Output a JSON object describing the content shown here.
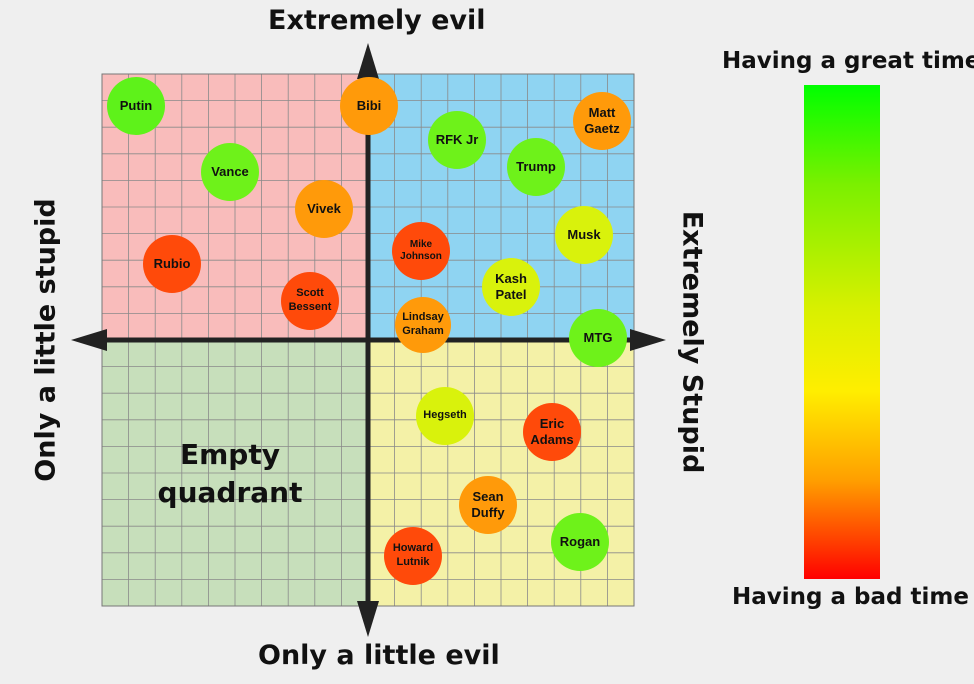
{
  "axes": {
    "top": "Extremely evil",
    "bottom": "Only a little evil",
    "left": "Only a little stupid",
    "right": "Extremely Stupid"
  },
  "quadrant_colors": {
    "top_left": "#f9bcbb",
    "top_right": "#8fd4f2",
    "bottom_left": "#c7dfbb",
    "bottom_right": "#f4f1a7"
  },
  "empty_quadrant_label": "Empty quadrant",
  "legend": {
    "top_label": "Having a great time",
    "bottom_label": "Having a bad time",
    "gradient_colors": [
      "#00ff00",
      "#ffee00",
      "#ff0000"
    ]
  },
  "people": [
    {
      "name": "Putin",
      "color": "#5ef21a"
    },
    {
      "name": "Vance",
      "color": "#6ef21a"
    },
    {
      "name": "Vivek",
      "color": "#ff9a0a"
    },
    {
      "name": "Rubio",
      "color": "#ff4a0a"
    },
    {
      "name": "Scott Bessent",
      "color": "#ff4a0a"
    },
    {
      "name": "Bibi",
      "color": "#ff9a0a"
    },
    {
      "name": "RFK Jr",
      "color": "#6ef21a"
    },
    {
      "name": "Trump",
      "color": "#6ef21a"
    },
    {
      "name": "Matt Gaetz",
      "color": "#ff9a0a"
    },
    {
      "name": "Musk",
      "color": "#d9f20c"
    },
    {
      "name": "Mike Johnson",
      "color": "#ff4a0a"
    },
    {
      "name": "Kash Patel",
      "color": "#d9f20c"
    },
    {
      "name": "Lindsay Graham",
      "color": "#ff9a0a"
    },
    {
      "name": "MTG",
      "color": "#6ef21a"
    },
    {
      "name": "Hegseth",
      "color": "#d9f20c"
    },
    {
      "name": "Eric Adams",
      "color": "#ff4a0a"
    },
    {
      "name": "Sean Duffy",
      "color": "#ff9a0a"
    },
    {
      "name": "Rogan",
      "color": "#6ef21a"
    },
    {
      "name": "Howard Lutnik",
      "color": "#ff4a0a"
    }
  ]
}
